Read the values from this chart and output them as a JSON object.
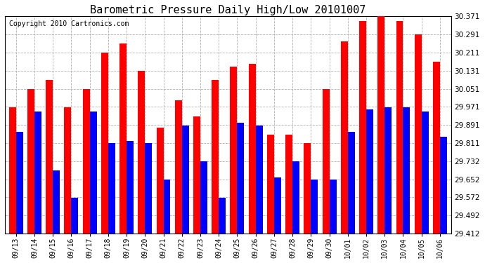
{
  "title": "Barometric Pressure Daily High/Low 20101007",
  "copyright": "Copyright 2010 Cartronics.com",
  "dates": [
    "09/13",
    "09/14",
    "09/15",
    "09/16",
    "09/17",
    "09/18",
    "09/19",
    "09/20",
    "09/21",
    "09/22",
    "09/23",
    "09/24",
    "09/25",
    "09/26",
    "09/27",
    "09/28",
    "09/29",
    "09/30",
    "10/01",
    "10/02",
    "10/03",
    "10/04",
    "10/05",
    "10/06"
  ],
  "highs": [
    29.97,
    30.05,
    30.09,
    29.97,
    30.05,
    30.21,
    30.25,
    30.13,
    29.88,
    30.0,
    29.93,
    30.09,
    30.15,
    30.16,
    29.85,
    29.85,
    29.81,
    30.05,
    30.26,
    30.35,
    30.37,
    30.35,
    30.29,
    30.17
  ],
  "lows": [
    29.86,
    29.95,
    29.69,
    29.57,
    29.95,
    29.81,
    29.82,
    29.81,
    29.65,
    29.89,
    29.73,
    29.57,
    29.9,
    29.89,
    29.66,
    29.73,
    29.65,
    29.65,
    29.86,
    29.96,
    29.97,
    29.97,
    29.95,
    29.84
  ],
  "high_color": "#ff0000",
  "low_color": "#0000ff",
  "bg_color": "#ffffff",
  "grid_color": "#b0b0b0",
  "ymin": 29.412,
  "ymax": 30.371,
  "yticks": [
    29.412,
    29.492,
    29.572,
    29.652,
    29.732,
    29.811,
    29.891,
    29.971,
    30.051,
    30.131,
    30.211,
    30.291,
    30.371
  ],
  "title_fontsize": 11,
  "copyright_fontsize": 7,
  "bar_width": 0.38
}
